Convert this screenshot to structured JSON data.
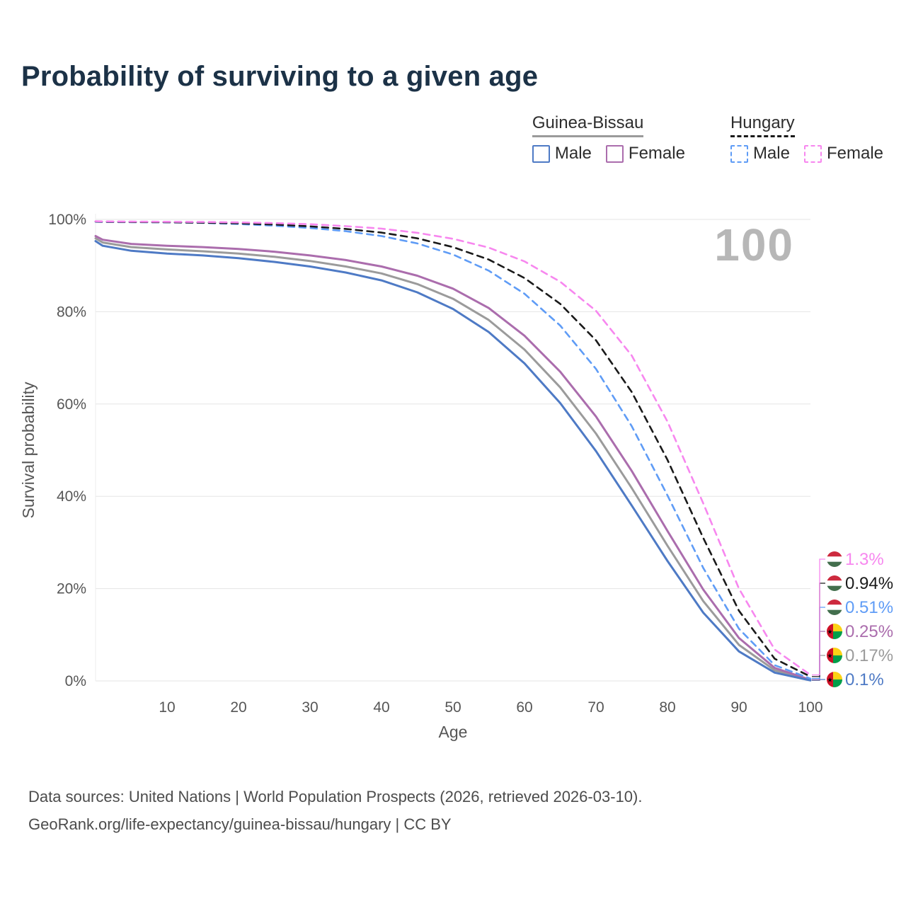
{
  "title": "Probability of surviving to a given age",
  "legend": {
    "groups": [
      {
        "label": "Guinea-Bissau",
        "entries": [
          {
            "label": "Male"
          },
          {
            "label": "Female"
          }
        ]
      },
      {
        "label": "Hungary",
        "entries": [
          {
            "label": "Male"
          },
          {
            "label": "Female"
          }
        ]
      }
    ]
  },
  "chart_data": {
    "type": "line",
    "title": "Probability of surviving to a given age",
    "xlabel": "Age",
    "ylabel": "Survival probability",
    "watermark": "100",
    "xlim": [
      0,
      100
    ],
    "ylim": [
      0,
      100
    ],
    "grid": "horizontal",
    "legend_position": "top-right",
    "xticks": [
      10,
      20,
      30,
      40,
      50,
      60,
      70,
      80,
      90,
      100
    ],
    "yticks": [
      "0%",
      "20%",
      "40%",
      "60%",
      "80%",
      "100%"
    ],
    "x": [
      0,
      1,
      5,
      10,
      15,
      20,
      25,
      30,
      35,
      40,
      45,
      50,
      55,
      60,
      65,
      70,
      75,
      80,
      85,
      90,
      95,
      100
    ],
    "series": [
      {
        "name": "Guinea-Bissau Both sexes",
        "color": "#9b9b9b",
        "dash": false,
        "flag": "guinea-bissau",
        "end_label": "0.17%",
        "values": [
          95.9,
          95.0,
          94.0,
          93.5,
          93.1,
          92.6,
          91.9,
          91.0,
          89.8,
          88.3,
          86.0,
          82.8,
          78.2,
          71.8,
          63.6,
          53.6,
          41.8,
          29.3,
          17.3,
          7.8,
          2.3,
          0.17
        ]
      },
      {
        "name": "Guinea-Bissau Female",
        "color": "#ab6dad",
        "dash": false,
        "flag": "guinea-bissau",
        "end_label": "0.25%",
        "values": [
          96.4,
          95.6,
          94.7,
          94.3,
          94.0,
          93.6,
          93.0,
          92.2,
          91.2,
          89.8,
          87.8,
          85.0,
          80.8,
          74.8,
          67.0,
          57.3,
          45.5,
          32.5,
          19.8,
          9.3,
          2.8,
          0.25
        ]
      },
      {
        "name": "Guinea-Bissau Male",
        "color": "#4e7ac5",
        "dash": false,
        "flag": "guinea-bissau",
        "end_label": "0.1%",
        "values": [
          95.3,
          94.3,
          93.2,
          92.6,
          92.2,
          91.6,
          90.8,
          89.8,
          88.5,
          86.8,
          84.2,
          80.6,
          75.6,
          68.8,
          60.2,
          49.8,
          38.0,
          26.0,
          14.8,
          6.4,
          1.8,
          0.1
        ]
      },
      {
        "name": "Hungary Male",
        "color": "#5f9cf6",
        "dash": true,
        "flag": "hungary",
        "end_label": "0.51%",
        "values": [
          99.5,
          99.45,
          99.4,
          99.35,
          99.25,
          99.0,
          98.65,
          98.15,
          97.45,
          96.4,
          94.8,
          92.4,
          88.9,
          83.9,
          77.0,
          67.6,
          55.2,
          40.2,
          24.5,
          11.3,
          3.4,
          0.51
        ]
      },
      {
        "name": "Hungary Both sexes",
        "color": "#1a1a1a",
        "dash": true,
        "flag": "hungary",
        "end_label": "0.94%",
        "values": [
          99.55,
          99.5,
          99.45,
          99.4,
          99.3,
          99.15,
          98.9,
          98.5,
          97.95,
          97.15,
          95.9,
          94.0,
          91.3,
          87.3,
          81.7,
          73.8,
          62.6,
          47.9,
          31.0,
          15.2,
          4.8,
          0.94
        ]
      },
      {
        "name": "Hungary Female",
        "color": "#f787ef",
        "dash": true,
        "flag": "hungary",
        "end_label": "1.3%",
        "values": [
          99.6,
          99.57,
          99.53,
          99.5,
          99.45,
          99.35,
          99.2,
          98.95,
          98.55,
          98.0,
          97.1,
          95.8,
          93.9,
          90.9,
          86.5,
          80.2,
          70.5,
          56.2,
          38.5,
          20.0,
          6.8,
          1.3
        ]
      }
    ]
  },
  "colors": {
    "title": "#1c3247",
    "gridline": "#e5e5e5",
    "tick_text": "#565656",
    "watermark": "#b7b7b7",
    "hungary_flag": [
      "#cd2a3e",
      "#ffffff",
      "#436f4d"
    ],
    "guinea_bissau_flag": [
      "#ce1126",
      "#fcd116",
      "#009e49",
      "#000000"
    ]
  },
  "footer": {
    "line1": "Data sources: United Nations | World Population Prospects (2026, retrieved 2026-03-10).",
    "line2": "GeoRank.org/life-expectancy/guinea-bissau/hungary | CC BY"
  }
}
